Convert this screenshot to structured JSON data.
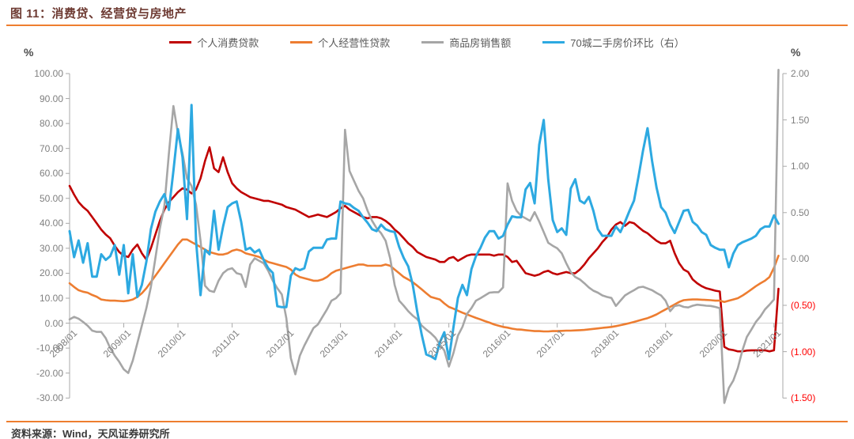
{
  "title": "图 11：消费贷、经营贷与房地产",
  "footer": {
    "source_label": "资料来源：Wind，天风证券研究所"
  },
  "units": {
    "left": "%",
    "right": "%"
  },
  "colors": {
    "accent_rule": "#EE7E2F",
    "title_text": "#6E3B33",
    "axis_text": "#7F7F7F",
    "axis_negative_text": "#FF0000",
    "axis_line": "#A9A9A9",
    "zero_line": "#D0D0D0",
    "legend_text": "#595959",
    "footer_text": "#3A3A3A"
  },
  "chart_data": {
    "type": "line",
    "title": "图 11：消费贷、经营贷与房地产",
    "x_interval": "monthly",
    "x_start": "2008/01",
    "x_end": "2021/02",
    "x_tick_labels": [
      "2008/01",
      "2009/01",
      "2010/01",
      "2011/01",
      "2012/01",
      "2013/01",
      "2014/01",
      "2015/01",
      "2016/01",
      "2017/01",
      "2018/01",
      "2019/01",
      "2020/01",
      "2021/01"
    ],
    "left_axis": {
      "unit": "%",
      "min": -30,
      "max": 100,
      "tick_step": 10,
      "tick_labels": [
        "100.00",
        "90.00",
        "80.00",
        "70.00",
        "60.00",
        "50.00",
        "40.00",
        "30.00",
        "20.00",
        "10.00",
        "0.00",
        "-10.00",
        "-20.00",
        "-30.00"
      ]
    },
    "right_axis": {
      "unit": "%",
      "min": -1.5,
      "max": 2.0,
      "tick_step": 0.5,
      "tick_labels": [
        "2.00",
        "1.50",
        "1.00",
        "0.50",
        "0.00",
        "(0.50)",
        "(1.00)",
        "(1.50)"
      ]
    },
    "grid": "zero-line-only",
    "legend_position": "top",
    "series": [
      {
        "name": "个人消费贷款",
        "axis": "left",
        "color": "#C00000",
        "width": 2.6,
        "values": [
          55,
          51.5,
          48.5,
          46.5,
          45,
          42.5,
          40,
          37.5,
          35.5,
          34,
          31,
          28.5,
          27,
          26.5,
          29.5,
          31.5,
          28,
          25.5,
          30,
          35.5,
          41,
          45.5,
          48.5,
          50.5,
          52.5,
          54,
          53.5,
          52,
          53.5,
          58,
          65,
          70.5,
          62,
          60.5,
          66.5,
          60.5,
          56,
          54,
          52.5,
          51.5,
          50.5,
          50,
          49.5,
          49,
          49,
          48.5,
          48,
          47.5,
          46.5,
          46,
          45.5,
          44.5,
          43.5,
          42.5,
          43,
          43.5,
          43,
          42.5,
          43.5,
          44.5,
          46,
          47,
          45.5,
          44.5,
          43.5,
          42.5,
          42,
          42.5,
          42.5,
          42,
          41,
          39.5,
          37.5,
          36,
          34,
          32,
          30.5,
          28.5,
          27.5,
          26.5,
          26,
          25.5,
          24.5,
          24.5,
          26,
          26.5,
          25,
          26,
          27,
          27.5,
          27.5,
          27.5,
          27.5,
          27.5,
          27,
          27.5,
          27.5,
          26.5,
          24.5,
          25,
          22.5,
          20,
          19.5,
          19,
          19.5,
          20.5,
          21,
          20,
          19.5,
          20,
          20.5,
          20,
          20,
          21.5,
          23.5,
          26,
          28,
          30,
          32.5,
          34.5,
          37.5,
          39.5,
          40.5,
          39,
          40.5,
          40,
          38.5,
          37,
          36,
          34.5,
          33,
          32,
          32,
          33,
          28,
          24,
          21.5,
          20.5,
          17.5,
          16,
          14.8,
          14,
          13.5,
          13,
          12.7,
          -9.5,
          -10.5,
          -10.8,
          -11.3,
          -11.3,
          -11,
          -10.9,
          -10.9,
          -10.9,
          -10.9,
          -11.3,
          -10.9,
          13.8
        ]
      },
      {
        "name": "个人经营性贷款",
        "axis": "left",
        "color": "#ED7D31",
        "width": 2.6,
        "values": [
          16,
          14.5,
          13.2,
          12.6,
          12.2,
          11.3,
          10.6,
          9.5,
          9.2,
          9,
          9,
          8.9,
          8.8,
          9,
          9.5,
          10.5,
          12,
          14,
          16.5,
          19,
          21.5,
          24,
          26.5,
          29,
          31.5,
          33.5,
          33.5,
          32.5,
          31.5,
          30.5,
          29.5,
          28.5,
          28,
          27.5,
          27.5,
          28,
          29,
          29.5,
          29,
          28,
          27.5,
          27,
          26.5,
          25.5,
          24.5,
          24,
          23.5,
          23,
          22.5,
          21.5,
          19.5,
          18.5,
          18,
          17.5,
          17,
          17,
          17.5,
          18.5,
          20,
          21,
          21.5,
          22,
          22.5,
          23,
          23.5,
          23.5,
          23,
          23,
          23,
          23,
          23.5,
          23,
          21.5,
          20,
          18.5,
          17.5,
          16.4,
          15,
          13.5,
          12,
          10.5,
          10,
          9.5,
          7.9,
          6.5,
          5.8,
          5,
          4.2,
          3.5,
          2.8,
          2.1,
          1.5,
          0.8,
          0.2,
          -0.5,
          -1,
          -1.5,
          -1.8,
          -2.2,
          -2.5,
          -2.6,
          -2.8,
          -3,
          -3.2,
          -3.2,
          -3.3,
          -3.3,
          -3.2,
          -3.2,
          -3.1,
          -3,
          -3,
          -2.9,
          -2.8,
          -2.7,
          -2.5,
          -2.3,
          -2.1,
          -1.9,
          -1.7,
          -1.5,
          -1.2,
          -0.8,
          -0.4,
          0,
          0.5,
          1,
          1.5,
          2,
          2.7,
          3.5,
          4.5,
          5.5,
          6.5,
          7.5,
          8.5,
          9.2,
          9.4,
          9.5,
          9.5,
          9.4,
          9.3,
          9.2,
          9,
          9,
          8.5,
          9,
          9.5,
          10,
          11,
          12.2,
          13.5,
          14.8,
          16,
          17,
          18.5,
          22.2,
          27
        ]
      },
      {
        "name": "商品房销售额",
        "axis": "left",
        "color": "#A6A6A6",
        "width": 2.6,
        "values": [
          1.5,
          2.5,
          1.8,
          0.5,
          -1,
          -3,
          -3.5,
          -3.5,
          -6,
          -10,
          -13,
          -15.5,
          -18.5,
          -20,
          -15,
          -8,
          -1,
          6,
          14.5,
          26,
          38,
          47,
          68,
          87,
          76,
          68,
          58,
          55,
          47.5,
          33,
          15,
          13,
          12.5,
          17,
          20,
          21.5,
          22,
          20,
          19.5,
          14.5,
          23.5,
          26,
          25,
          24,
          21,
          17,
          14,
          11.5,
          2,
          -14,
          -20.5,
          -13,
          -9,
          -5.5,
          -2,
          -0.5,
          2.5,
          5.5,
          9,
          10,
          12,
          77.5,
          61,
          57,
          53,
          50,
          45,
          41,
          38,
          36,
          33,
          26,
          15.3,
          9,
          7,
          4.8,
          3,
          1.6,
          -1,
          -2.6,
          -4,
          -5.8,
          -8.5,
          -11,
          -17.4,
          -12,
          -5,
          -1.5,
          3.7,
          6,
          9,
          10,
          11.1,
          12.2,
          12.4,
          12.4,
          14.3,
          56,
          49,
          45,
          43,
          42,
          41,
          44.5,
          40.7,
          36.5,
          32.2,
          31,
          30,
          28,
          24,
          20.5,
          18.5,
          17.5,
          16,
          14.3,
          13,
          12.2,
          11.1,
          10.5,
          10.1,
          6.9,
          9,
          11.1,
          12.2,
          13.2,
          14.3,
          14.6,
          13.9,
          13.2,
          12.1,
          11.1,
          9,
          4.8,
          6.9,
          7.2,
          6.5,
          6.3,
          7,
          7.4,
          7.2,
          7,
          6.9,
          6.5,
          6,
          -32,
          -26,
          -23,
          -18,
          -11,
          -5.5,
          -2.6,
          0.5,
          2.7,
          5.5,
          7.4,
          9.5,
          101.5
        ]
      },
      {
        "name": "70城二手房价环比（右）",
        "axis": "right",
        "color": "#2DA9E1",
        "width": 3,
        "values": [
          0.3,
          0.02,
          0.2,
          -0.04,
          0.17,
          -0.19,
          -0.19,
          0.05,
          -0.01,
          0.03,
          0.15,
          -0.17,
          0.15,
          -0.37,
          0.05,
          -0.41,
          -0.28,
          -0.03,
          0.32,
          0.51,
          0.62,
          0.7,
          0.53,
          0.95,
          1.4,
          1.1,
          0.43,
          1.66,
          0.2,
          -0.39,
          0.1,
          0.05,
          0.52,
          0.1,
          0.35,
          0.56,
          0.6,
          0.62,
          0.4,
          0.1,
          0.12,
          0.07,
          0.1,
          -0.01,
          -0.1,
          -0.15,
          -0.51,
          -0.52,
          -0.52,
          -0.18,
          -0.1,
          -0.12,
          -0.1,
          0.08,
          0.12,
          0.12,
          0.12,
          0.21,
          0.22,
          0.22,
          0.62,
          0.6,
          0.59,
          0.55,
          0.52,
          0.45,
          0.39,
          0.32,
          0.3,
          0.37,
          0.32,
          0.3,
          0.29,
          0.13,
          0.01,
          -0.08,
          -0.28,
          -0.57,
          -0.82,
          -1.03,
          -1.05,
          -1.08,
          -0.9,
          -0.79,
          -1.08,
          -0.74,
          -0.42,
          -0.28,
          -0.39,
          -0.11,
          0.03,
          0.12,
          0.23,
          0.3,
          0.3,
          0.22,
          0.25,
          0.37,
          0.46,
          0.45,
          0.45,
          0.75,
          0.82,
          0.6,
          1.23,
          1.5,
          0.86,
          0.42,
          0.29,
          0.33,
          0.26,
          0.76,
          0.86,
          0.63,
          0.6,
          0.67,
          0.52,
          0.32,
          0.25,
          0.25,
          0.25,
          0.35,
          0.29,
          0.4,
          0.52,
          0.63,
          0.89,
          1.17,
          1.41,
          1.06,
          0.77,
          0.56,
          0.5,
          0.37,
          0.28,
          0.4,
          0.52,
          0.53,
          0.4,
          0.36,
          0.29,
          0.26,
          0.15,
          0.12,
          0.1,
          0.1,
          -0.09,
          0.06,
          0.15,
          0.18,
          0.2,
          0.22,
          0.25,
          0.32,
          0.35,
          0.35,
          0.47,
          0.38
        ]
      }
    ]
  }
}
